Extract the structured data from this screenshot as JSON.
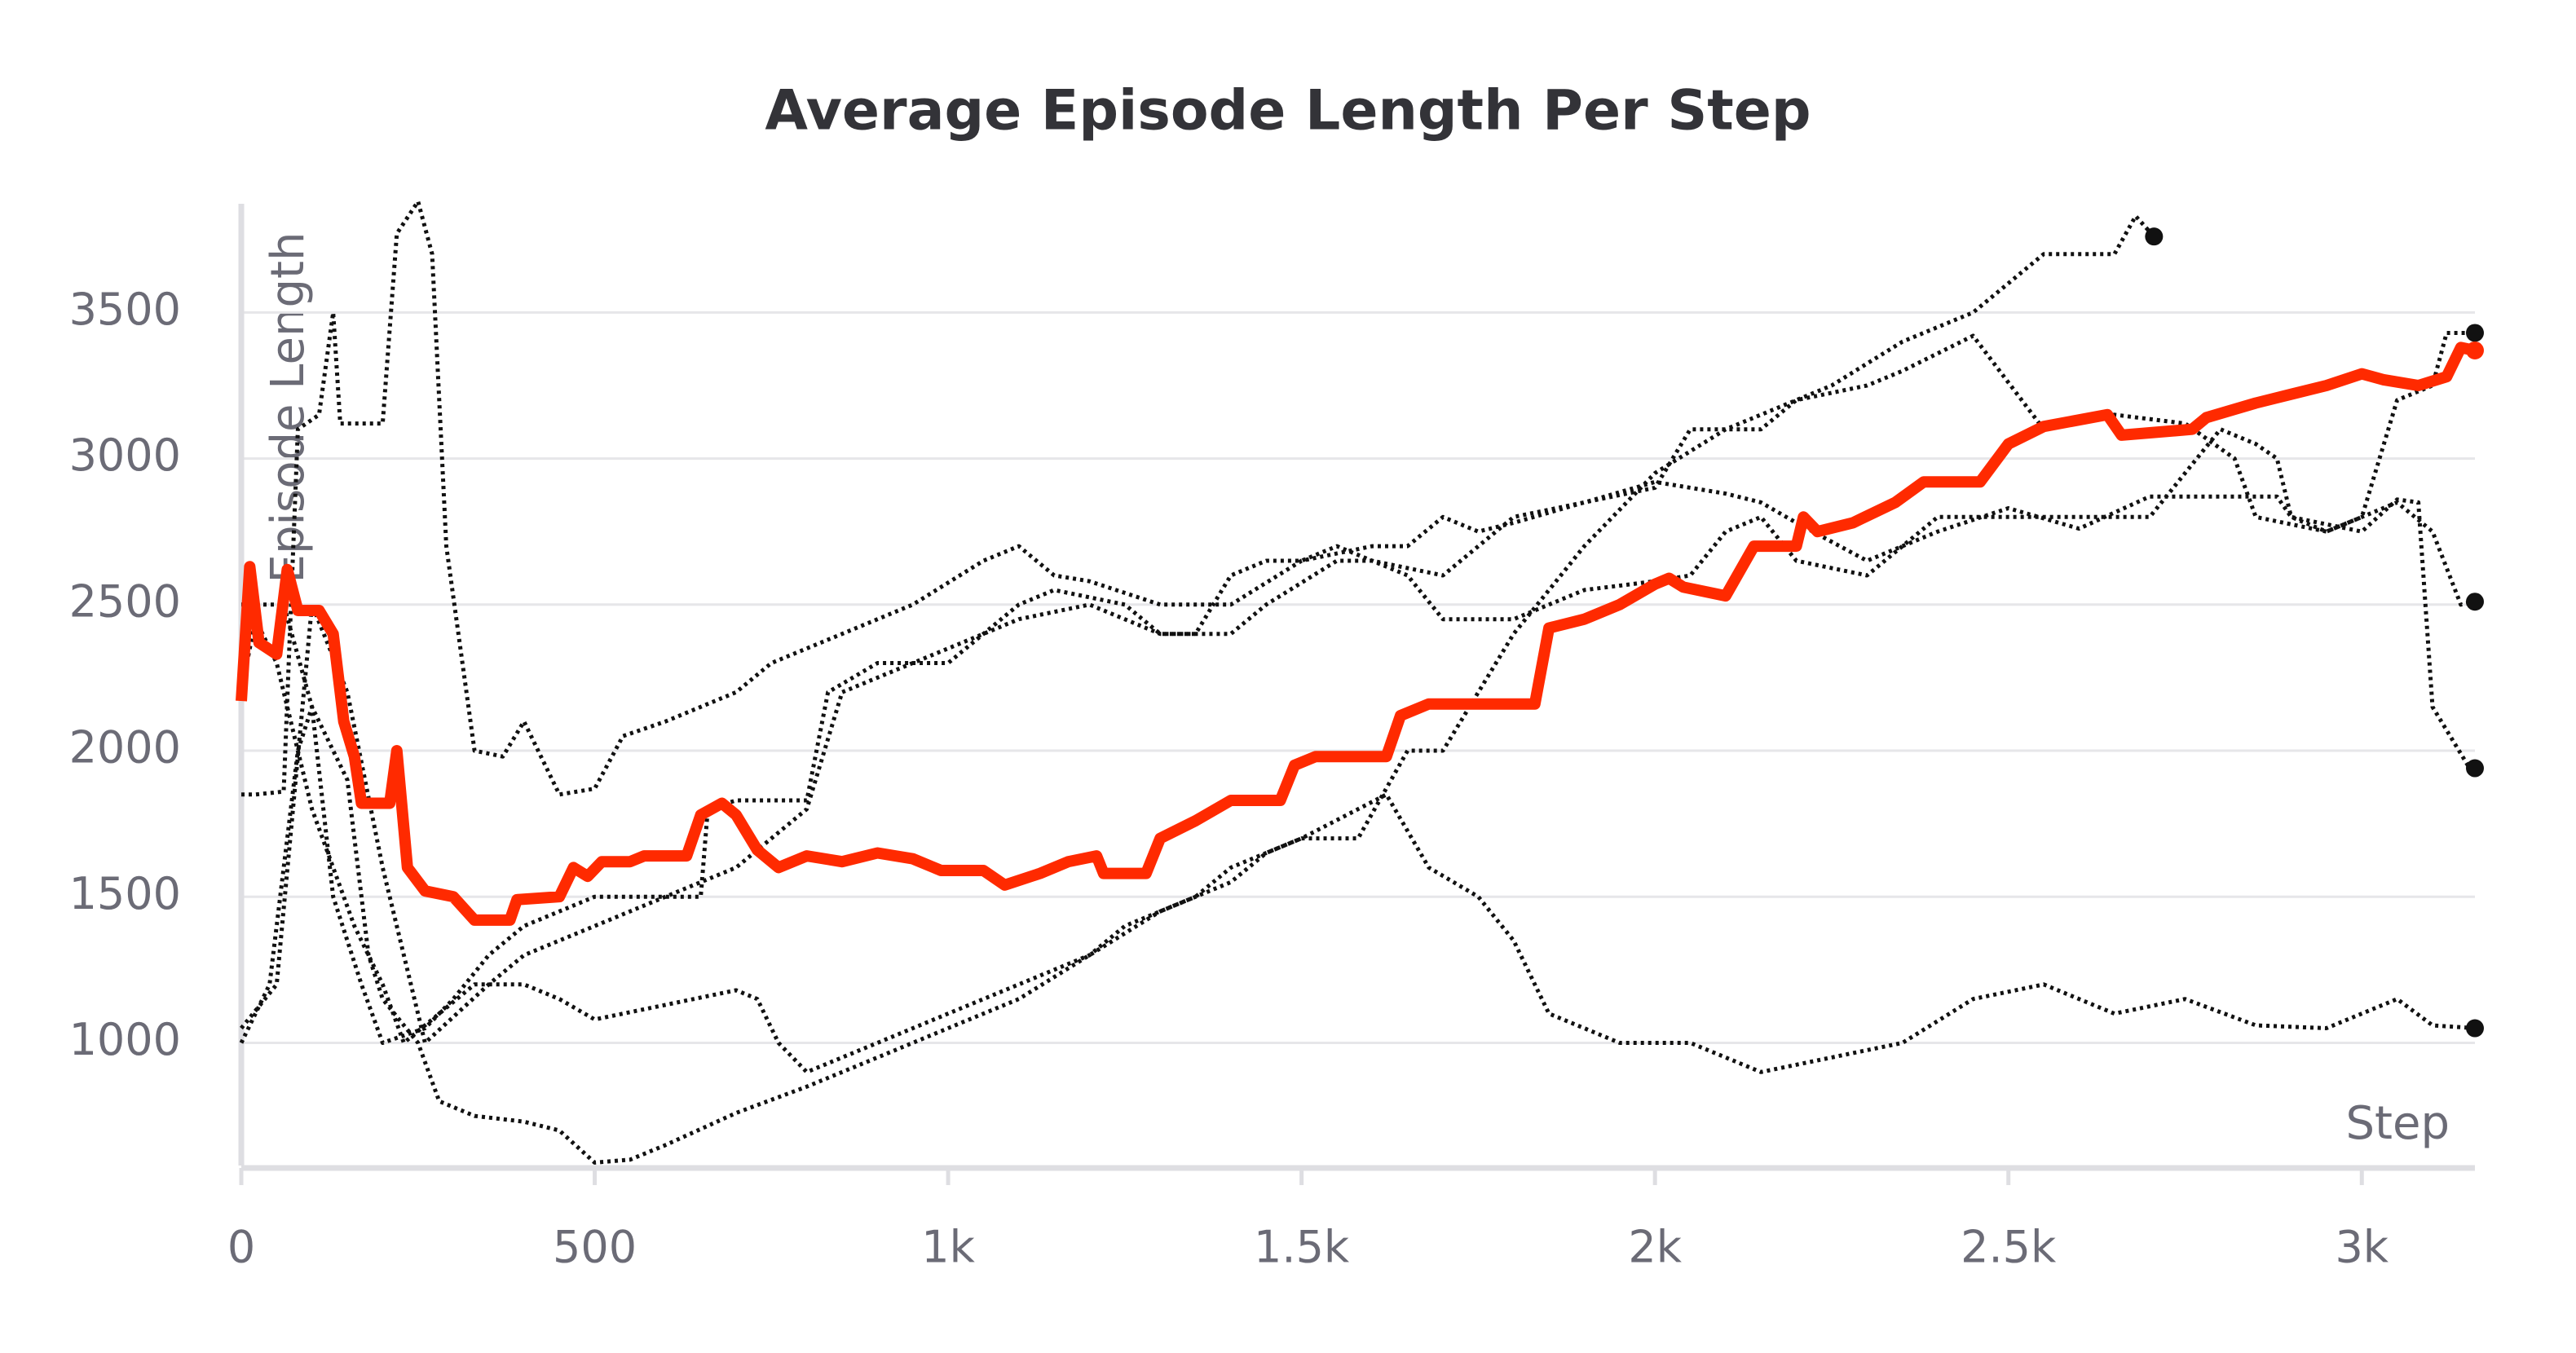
{
  "chart_data": {
    "type": "line",
    "title": "Average Episode Length Per Step",
    "x_label": "Step",
    "y_label": "Episode Length",
    "xlim": [
      0,
      3160
    ],
    "ylim": [
      580,
      3900
    ],
    "xticks": [
      0,
      500,
      {
        "value": 1000,
        "label": "1k"
      },
      {
        "value": 1500,
        "label": "1.5k"
      },
      {
        "value": 2000,
        "label": "2k"
      },
      {
        "value": 2500,
        "label": "2.5k"
      },
      {
        "value": 3000,
        "label": "3k"
      }
    ],
    "yticks": [
      1000,
      1500,
      2000,
      2500,
      3000,
      3500
    ],
    "grid": true,
    "series": [
      {
        "color": "#111111",
        "style": "dotted",
        "x": [
          0,
          60,
          100,
          150,
          180,
          200,
          250,
          280,
          330,
          400,
          450,
          500,
          550,
          600,
          700,
          800,
          900,
          1000,
          1100,
          1200,
          1300,
          1400,
          1450,
          1500,
          1580,
          1650,
          1700,
          1800,
          1900,
          2000,
          2100,
          2250,
          2350,
          2450,
          2550,
          2650,
          2680,
          2706
        ],
        "values": [
          2500,
          2500,
          2150,
          1900,
          1300,
          1150,
          1000,
          800,
          750,
          730,
          700,
          590,
          600,
          650,
          760,
          850,
          950,
          1050,
          1150,
          1300,
          1450,
          1550,
          1650,
          1700,
          1700,
          2000,
          2000,
          2400,
          2700,
          2950,
          3100,
          3250,
          3400,
          3500,
          3700,
          3700,
          3830,
          3760
        ]
      },
      {
        "color": "#111111",
        "style": "dotted",
        "x": [
          0,
          20,
          60,
          80,
          110,
          130,
          140,
          200,
          220,
          250,
          270,
          290,
          330,
          370,
          400,
          450,
          500,
          540,
          600,
          700,
          750,
          850,
          950,
          1050,
          1100,
          1150,
          1200,
          1300,
          1400,
          1500,
          1600,
          1650,
          1700,
          1750,
          1800,
          1900,
          2000,
          2100,
          2150,
          2200,
          2300,
          2400,
          2500,
          2600,
          2700,
          2800,
          2880,
          2900,
          2950,
          3000,
          3050,
          3100,
          3140,
          3160
        ],
        "values": [
          1850,
          1850,
          1860,
          3100,
          3150,
          3500,
          3120,
          3120,
          3770,
          3880,
          3700,
          2700,
          2000,
          1980,
          2100,
          1850,
          1870,
          2050,
          2100,
          2200,
          2300,
          2400,
          2500,
          2650,
          2700,
          2600,
          2580,
          2500,
          2500,
          2650,
          2700,
          2700,
          2800,
          2750,
          2780,
          2850,
          2920,
          2880,
          2850,
          2780,
          2650,
          2750,
          2830,
          2760,
          2870,
          2870,
          2870,
          2800,
          2750,
          2800,
          2850,
          2750,
          2500,
          2510
        ]
      },
      {
        "color": "#111111",
        "style": "dotted",
        "x": [
          0,
          40,
          80,
          100,
          130,
          170,
          200,
          260,
          300,
          350,
          400,
          450,
          500,
          650,
          660,
          700,
          800,
          830,
          900,
          1000,
          1050,
          1100,
          1150,
          1250,
          1300,
          1350,
          1400,
          1450,
          1500,
          1550,
          1650,
          1700,
          1800,
          1850,
          1900,
          2000,
          2050,
          2100,
          2150,
          2200,
          2300,
          2400,
          2500,
          2600,
          2700,
          2800,
          2850,
          2880,
          2900,
          3000,
          3050,
          3080,
          3100,
          3150,
          3160
        ],
        "values": [
          1000,
          1200,
          2000,
          2150,
          1500,
          1200,
          1000,
          1050,
          1150,
          1300,
          1400,
          1450,
          1500,
          1500,
          1800,
          1830,
          1830,
          2200,
          2300,
          2300,
          2400,
          2500,
          2550,
          2500,
          2400,
          2400,
          2600,
          2650,
          2650,
          2700,
          2600,
          2450,
          2450,
          2500,
          2550,
          2580,
          2600,
          2750,
          2800,
          2650,
          2600,
          2800,
          2800,
          2800,
          2800,
          3100,
          3050,
          3000,
          2800,
          2750,
          2860,
          2850,
          2150,
          1950,
          1940
        ]
      },
      {
        "color": "#111111",
        "style": "dotted",
        "x": [
          0,
          20,
          50,
          100,
          130,
          160,
          200,
          230,
          280,
          330,
          400,
          450,
          500,
          600,
          700,
          730,
          760,
          800,
          900,
          1000,
          1100,
          1150,
          1200,
          1250,
          1350,
          1400,
          1500,
          1580,
          1620,
          1680,
          1750,
          1800,
          1850,
          1950,
          2050,
          2100,
          2150,
          2250,
          2350,
          2450,
          2550,
          2650,
          2750,
          2850,
          2950,
          3050,
          3100,
          3160
        ],
        "values": [
          2200,
          2450,
          2300,
          1800,
          1600,
          1400,
          1200,
          1000,
          1100,
          1200,
          1200,
          1150,
          1080,
          1130,
          1180,
          1150,
          1000,
          900,
          1000,
          1100,
          1200,
          1250,
          1300,
          1400,
          1500,
          1600,
          1700,
          1800,
          1850,
          1600,
          1500,
          1350,
          1100,
          1000,
          1000,
          950,
          900,
          950,
          1000,
          1150,
          1200,
          1100,
          1150,
          1060,
          1050,
          1150,
          1060,
          1050
        ]
      },
      {
        "color": "#111111",
        "style": "dotted",
        "x": [
          0,
          50,
          100,
          150,
          200,
          260,
          350,
          400,
          500,
          600,
          700,
          800,
          850,
          950,
          1050,
          1100,
          1200,
          1300,
          1400,
          1450,
          1550,
          1600,
          1700,
          1800,
          1900,
          2000,
          2050,
          2150,
          2200,
          2300,
          2350,
          2450,
          2550,
          2650,
          2750,
          2820,
          2850,
          2950,
          3000,
          3050,
          3100,
          3120,
          3160
        ],
        "values": [
          1050,
          1200,
          2500,
          2200,
          1600,
          1000,
          1200,
          1300,
          1400,
          1500,
          1600,
          1800,
          2200,
          2300,
          2400,
          2450,
          2500,
          2400,
          2400,
          2500,
          2650,
          2650,
          2600,
          2800,
          2850,
          2900,
          3100,
          3100,
          3200,
          3250,
          3300,
          3420,
          3100,
          3150,
          3120,
          3000,
          2800,
          2750,
          2800,
          3200,
          3250,
          3430,
          3430
        ]
      },
      {
        "color": "#ff2a00",
        "style": "solid",
        "x": [
          0,
          12,
          25,
          50,
          65,
          80,
          110,
          130,
          145,
          160,
          170,
          210,
          220,
          235,
          260,
          300,
          330,
          380,
          390,
          450,
          470,
          490,
          510,
          550,
          570,
          630,
          650,
          680,
          700,
          730,
          760,
          800,
          850,
          900,
          950,
          990,
          1050,
          1080,
          1130,
          1170,
          1210,
          1220,
          1280,
          1300,
          1350,
          1400,
          1470,
          1490,
          1520,
          1620,
          1640,
          1680,
          1830,
          1850,
          1900,
          1950,
          2000,
          2020,
          2040,
          2100,
          2140,
          2200,
          2210,
          2230,
          2280,
          2340,
          2380,
          2460,
          2500,
          2550,
          2640,
          2660,
          2760,
          2780,
          2850,
          2900,
          2950,
          3000,
          3030,
          3080,
          3120,
          3140,
          3160
        ],
        "values": [
          2170,
          2630,
          2370,
          2330,
          2620,
          2480,
          2480,
          2400,
          2100,
          1980,
          1820,
          1820,
          2000,
          1600,
          1520,
          1500,
          1420,
          1420,
          1490,
          1500,
          1600,
          1570,
          1620,
          1620,
          1640,
          1640,
          1780,
          1820,
          1780,
          1660,
          1600,
          1640,
          1620,
          1650,
          1630,
          1590,
          1590,
          1540,
          1580,
          1620,
          1640,
          1580,
          1580,
          1700,
          1760,
          1830,
          1830,
          1950,
          1980,
          1980,
          2120,
          2160,
          2160,
          2420,
          2450,
          2500,
          2570,
          2590,
          2560,
          2530,
          2700,
          2700,
          2800,
          2750,
          2780,
          2850,
          2920,
          2920,
          3050,
          3110,
          3150,
          3080,
          3100,
          3140,
          3190,
          3220,
          3250,
          3290,
          3270,
          3250,
          3280,
          3380,
          3370
        ]
      }
    ]
  }
}
